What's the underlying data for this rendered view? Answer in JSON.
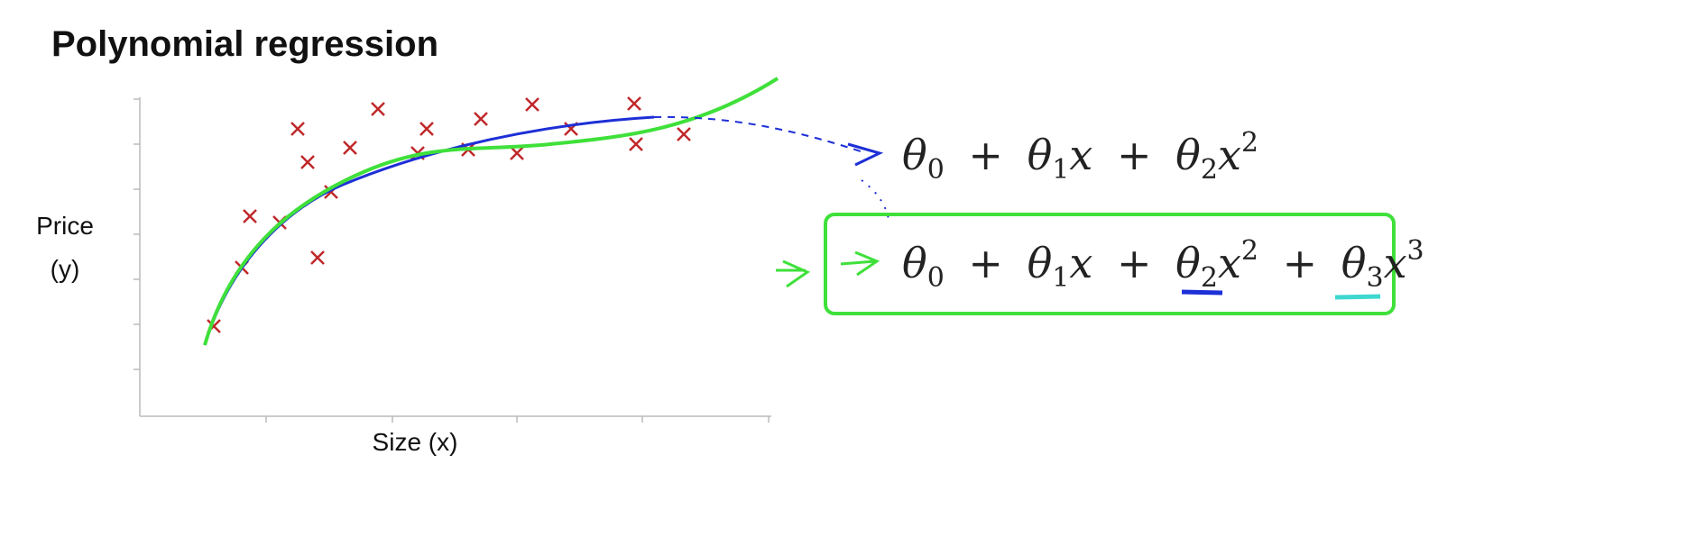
{
  "title": "Polynomial regression",
  "y_label": [
    "Price",
    "(y)"
  ],
  "x_label": "Size (x)",
  "formulas": [
    [
      "θ",
      "0",
      "+",
      "θ",
      "1",
      "x",
      "+",
      "θ",
      "2",
      "x",
      "2"
    ],
    [
      "θ",
      "0",
      "+",
      "θ",
      "1",
      "x",
      "+",
      "θ",
      "2",
      "x",
      "2",
      "+",
      "θ",
      "3",
      "x",
      "3"
    ]
  ]
}
